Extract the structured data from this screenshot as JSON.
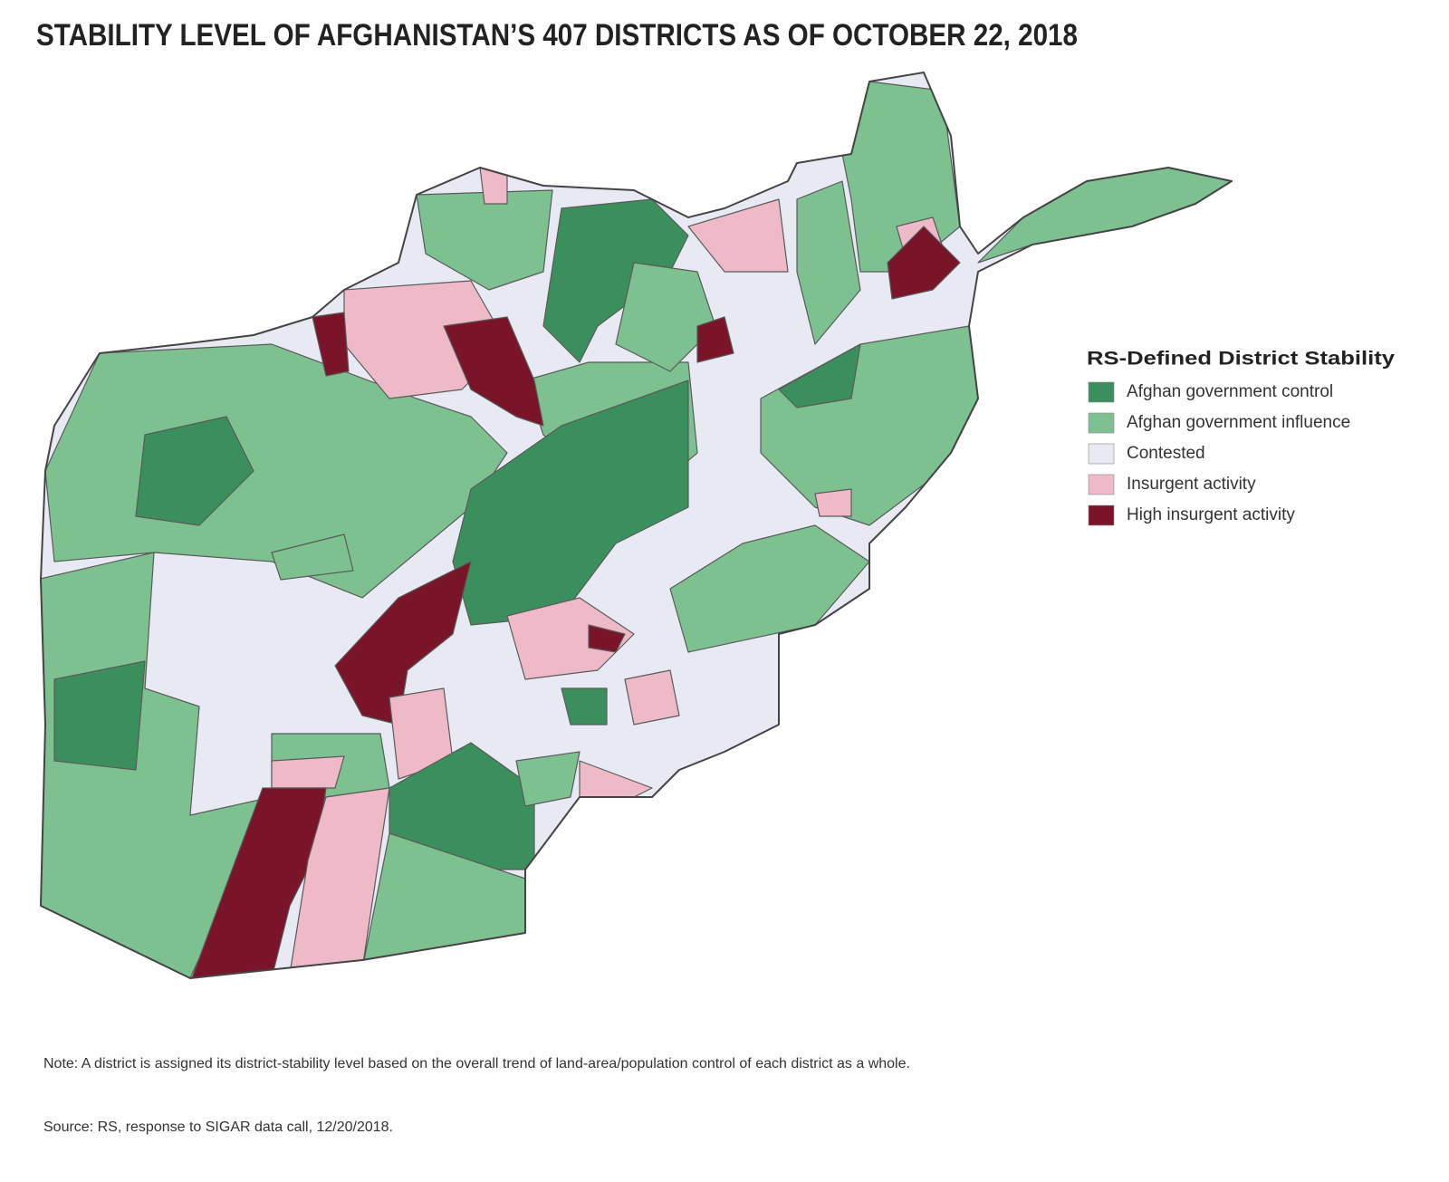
{
  "title": "STABILITY LEVEL OF AFGHANISTAN’S 407 DISTRICTS AS OF OCTOBER 22, 2018",
  "legend": {
    "title": "RS-Defined District Stability",
    "items": [
      {
        "label": "Afghan government control",
        "color": "#3b8f5d"
      },
      {
        "label": "Afghan government influence",
        "color": "#7dc190"
      },
      {
        "label": "Contested",
        "color": "#e7eaf3"
      },
      {
        "label": "Insurgent activity",
        "color": "#efbac8"
      },
      {
        "label": "High insurgent activity",
        "color": "#7a1529"
      }
    ]
  },
  "note": "Note: A district is assigned its district-stability level based on the overall trend of land-area/population control of each district as a whole.",
  "source": "Source: RS, response to SIGAR data call, 12/20/2018."
}
